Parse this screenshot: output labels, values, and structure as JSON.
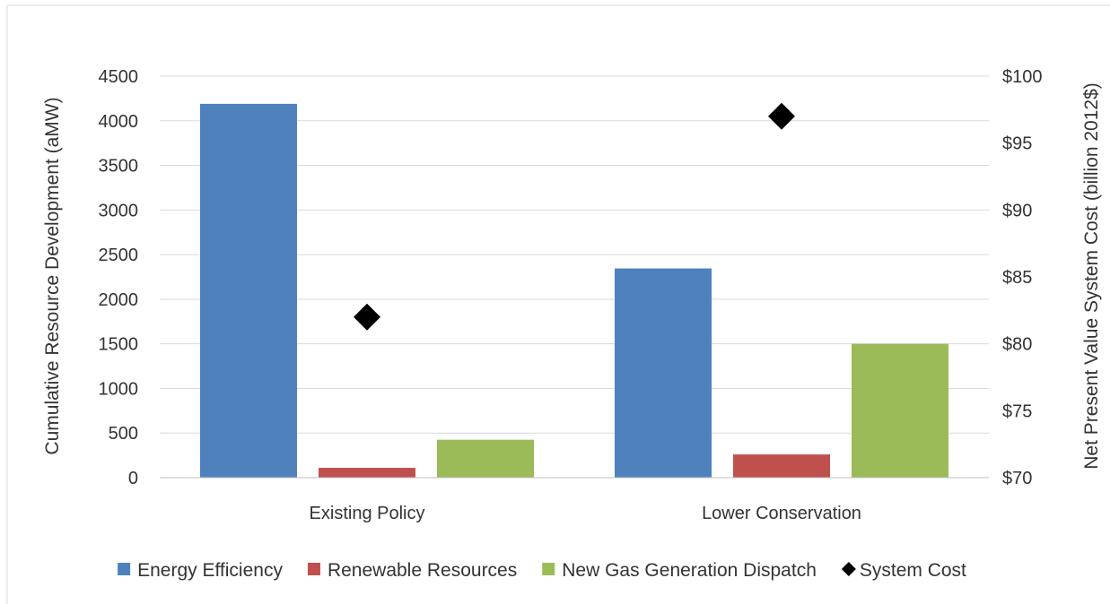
{
  "chart_data": {
    "type": "bar",
    "categories": [
      "Existing Policy",
      "Lower Conservation"
    ],
    "series": [
      {
        "name": "Energy Efficiency",
        "type": "bar",
        "axis": "left",
        "color": "#4f81bd",
        "values": [
          4190,
          2345
        ]
      },
      {
        "name": "Renewable Resources",
        "type": "bar",
        "axis": "left",
        "color": "#c0504d",
        "values": [
          110,
          260
        ]
      },
      {
        "name": "New Gas Generation Dispatch",
        "type": "bar",
        "axis": "left",
        "color": "#9bbb59",
        "values": [
          425,
          1500
        ]
      },
      {
        "name": "System Cost",
        "type": "scatter",
        "marker": "diamond",
        "axis": "right",
        "color": "#000000",
        "values": [
          82,
          97
        ]
      }
    ],
    "ylabel": "Cumulative Resource Development (aMW)",
    "y2label": "Net Present Value System Cost (billion 2012$)",
    "ylim": [
      0,
      4500
    ],
    "y2lim": [
      70,
      100
    ],
    "yticks": [
      "0",
      "500",
      "1000",
      "1500",
      "2000",
      "2500",
      "3000",
      "3500",
      "4000",
      "4500"
    ],
    "y2ticks": [
      "$70",
      "$75",
      "$80",
      "$85",
      "$90",
      "$95",
      "$100"
    ],
    "grid": true,
    "legend_position": "bottom"
  }
}
